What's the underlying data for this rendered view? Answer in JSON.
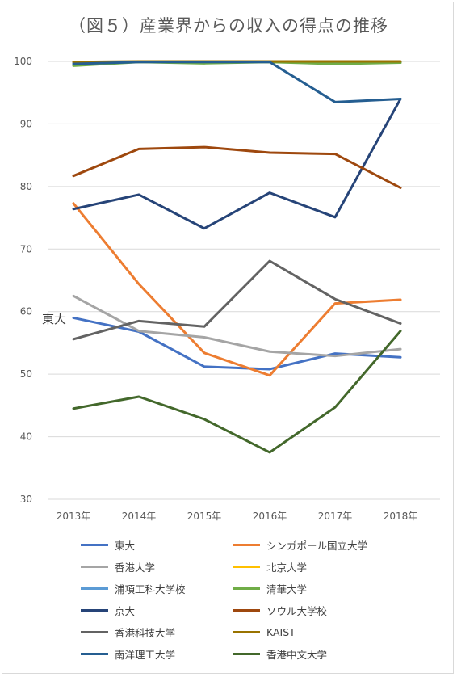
{
  "title": "（図５）産業界からの収入の得点の推移",
  "chart_data": {
    "type": "line",
    "title": "（図５）産業界からの収入の得点の推移",
    "categories": [
      "2013年",
      "2014年",
      "2015年",
      "2016年",
      "2017年",
      "2018年"
    ],
    "ylim": [
      30,
      100
    ],
    "yticks": [
      30,
      40,
      50,
      60,
      70,
      80,
      90,
      100
    ],
    "grid": true,
    "legend_position": "bottom",
    "annotation": "東大",
    "series": [
      {
        "name": "東大",
        "color": "#4472C4",
        "values": [
          59.0,
          56.8,
          51.2,
          50.8,
          53.3,
          52.7
        ]
      },
      {
        "name": "シンガポール国立大学",
        "color": "#ED7D31",
        "values": [
          77.3,
          64.4,
          53.4,
          49.8,
          61.3,
          61.9
        ]
      },
      {
        "name": "香港大学",
        "color": "#A5A5A5",
        "values": [
          62.5,
          56.9,
          55.9,
          53.6,
          52.9,
          54.0
        ]
      },
      {
        "name": "北京大学",
        "color": "#FFC000",
        "values": [
          99.9,
          99.9,
          99.9,
          99.9,
          99.9,
          99.9
        ]
      },
      {
        "name": "浦項工科大学校",
        "color": "#5B9BD5",
        "values": [
          99.8,
          99.9,
          99.9,
          99.9,
          99.9,
          99.9
        ]
      },
      {
        "name": "清華大学",
        "color": "#70AD47",
        "values": [
          99.3,
          99.9,
          99.7,
          99.9,
          99.6,
          99.8
        ]
      },
      {
        "name": "京大",
        "color": "#264478",
        "values": [
          76.4,
          78.7,
          73.3,
          79.0,
          75.1,
          94.0
        ]
      },
      {
        "name": "ソウル大学校",
        "color": "#9E480E",
        "values": [
          81.7,
          86.0,
          86.3,
          85.4,
          85.2,
          79.8
        ]
      },
      {
        "name": "香港科技大学",
        "color": "#636363",
        "values": [
          55.6,
          58.5,
          57.6,
          68.1,
          62.0,
          58.1
        ]
      },
      {
        "name": "KAIST",
        "color": "#997300",
        "values": [
          99.9,
          100.0,
          100.0,
          100.0,
          100.0,
          100.0
        ]
      },
      {
        "name": "南洋理工大学",
        "color": "#255E91",
        "values": [
          99.6,
          99.9,
          99.9,
          99.9,
          93.5,
          94.0
        ]
      },
      {
        "name": "香港中文大学",
        "color": "#43682B",
        "values": [
          44.5,
          46.4,
          42.8,
          37.5,
          44.7,
          56.9
        ]
      }
    ]
  }
}
